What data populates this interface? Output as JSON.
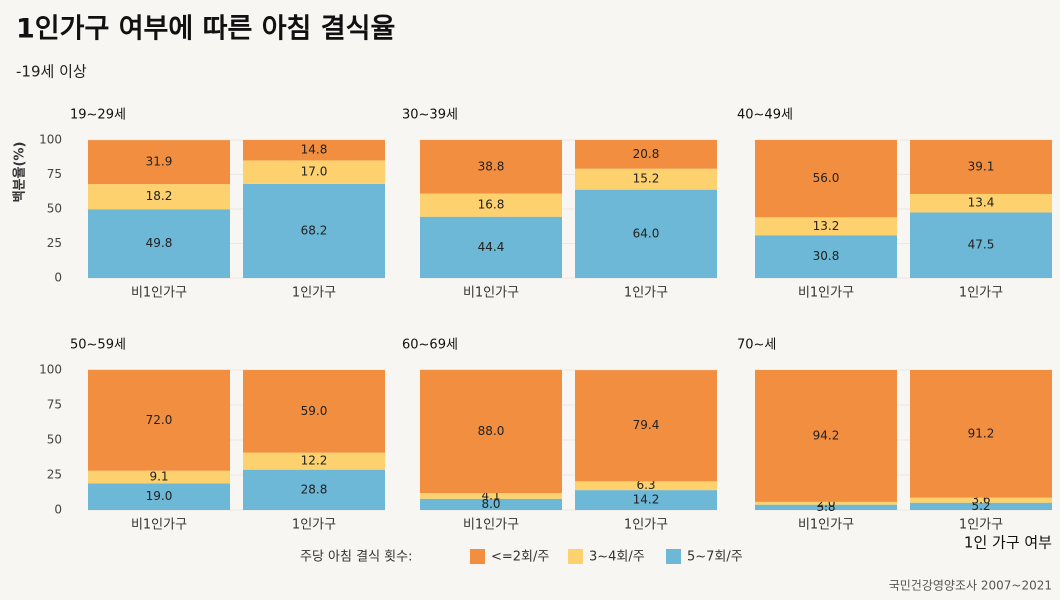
{
  "title": "1인가구 여부에 따른 아침 결식율",
  "subtitle": "-19세 이상",
  "ylabel": "백분율(%)",
  "xlabel": "1인 가구 여부",
  "legend_title": "주당 아침 결식 횟수:",
  "caption": "국민건강영양조사 2007~2021",
  "chart_data": [
    {
      "type": "bar",
      "stacked": true,
      "title": "19~29세",
      "categories": [
        "비1인가구",
        "1인가구"
      ],
      "ylim": [
        0,
        100
      ],
      "yticks": [
        0,
        25,
        50,
        75,
        100
      ],
      "grid": true,
      "series": [
        {
          "name": "<=2회/주",
          "color": "#f28e3f",
          "values": [
            31.9,
            14.8
          ],
          "value_labels": [
            "31.9",
            "14.8"
          ]
        },
        {
          "name": "3~4회/주",
          "color": "#fcd16e",
          "values": [
            18.2,
            17.0
          ],
          "value_labels": [
            "18.2",
            "17.0"
          ]
        },
        {
          "name": "5~7회/주",
          "color": "#6cb8d6",
          "values": [
            49.8,
            68.2
          ],
          "value_labels": [
            "49.8",
            "68.2"
          ]
        }
      ]
    },
    {
      "type": "bar",
      "stacked": true,
      "title": "30~39세",
      "categories": [
        "비1인가구",
        "1인가구"
      ],
      "ylim": [
        0,
        100
      ],
      "yticks": [
        0,
        25,
        50,
        75,
        100
      ],
      "grid": true,
      "series": [
        {
          "name": "<=2회/주",
          "color": "#f28e3f",
          "values": [
            38.8,
            20.8
          ],
          "value_labels": [
            "38.8",
            "20.8"
          ]
        },
        {
          "name": "3~4회/주",
          "color": "#fcd16e",
          "values": [
            16.8,
            15.2
          ],
          "value_labels": [
            "16.8",
            "15.2"
          ]
        },
        {
          "name": "5~7회/주",
          "color": "#6cb8d6",
          "values": [
            44.4,
            64.0
          ],
          "value_labels": [
            "44.4",
            "64.0"
          ]
        }
      ]
    },
    {
      "type": "bar",
      "stacked": true,
      "title": "40~49세",
      "categories": [
        "비1인가구",
        "1인가구"
      ],
      "ylim": [
        0,
        100
      ],
      "yticks": [
        0,
        25,
        50,
        75,
        100
      ],
      "grid": true,
      "series": [
        {
          "name": "<=2회/주",
          "color": "#f28e3f",
          "values": [
            56.0,
            39.1
          ],
          "value_labels": [
            "56.0",
            "39.1"
          ]
        },
        {
          "name": "3~4회/주",
          "color": "#fcd16e",
          "values": [
            13.2,
            13.4
          ],
          "value_labels": [
            "13.2",
            "13.4"
          ]
        },
        {
          "name": "5~7회/주",
          "color": "#6cb8d6",
          "values": [
            30.8,
            47.5
          ],
          "value_labels": [
            "30.8",
            "47.5"
          ]
        }
      ]
    },
    {
      "type": "bar",
      "stacked": true,
      "title": "50~59세",
      "categories": [
        "비1인가구",
        "1인가구"
      ],
      "ylim": [
        0,
        100
      ],
      "yticks": [
        0,
        25,
        50,
        75,
        100
      ],
      "grid": true,
      "series": [
        {
          "name": "<=2회/주",
          "color": "#f28e3f",
          "values": [
            72.0,
            59.0
          ],
          "value_labels": [
            "72.0",
            "59.0"
          ]
        },
        {
          "name": "3~4회/주",
          "color": "#fcd16e",
          "values": [
            9.1,
            12.2
          ],
          "value_labels": [
            "9.1",
            "12.2"
          ]
        },
        {
          "name": "5~7회/주",
          "color": "#6cb8d6",
          "values": [
            19.0,
            28.8
          ],
          "value_labels": [
            "19.0",
            "28.8"
          ]
        }
      ]
    },
    {
      "type": "bar",
      "stacked": true,
      "title": "60~69세",
      "categories": [
        "비1인가구",
        "1인가구"
      ],
      "ylim": [
        0,
        100
      ],
      "yticks": [
        0,
        25,
        50,
        75,
        100
      ],
      "grid": true,
      "series": [
        {
          "name": "<=2회/주",
          "color": "#f28e3f",
          "values": [
            88.0,
            79.4
          ],
          "value_labels": [
            "88.0",
            "79.4"
          ]
        },
        {
          "name": "3~4회/주",
          "color": "#fcd16e",
          "values": [
            4.1,
            6.3
          ],
          "value_labels": [
            "4.1",
            "6.3"
          ]
        },
        {
          "name": "5~7회/주",
          "color": "#6cb8d6",
          "values": [
            8.0,
            14.2
          ],
          "value_labels": [
            "8.0",
            "14.2"
          ]
        }
      ]
    },
    {
      "type": "bar",
      "stacked": true,
      "title": "70~세",
      "categories": [
        "비1인가구",
        "1인가구"
      ],
      "ylim": [
        0,
        100
      ],
      "yticks": [
        0,
        25,
        50,
        75,
        100
      ],
      "grid": true,
      "series": [
        {
          "name": "<=2회/주",
          "color": "#f28e3f",
          "values": [
            94.2,
            91.2
          ],
          "value_labels": [
            "94.2",
            "91.2"
          ]
        },
        {
          "name": "3~4회/주",
          "color": "#fcd16e",
          "values": [
            2.0,
            3.6
          ],
          "value_labels": [
            "2.0",
            "3.6"
          ]
        },
        {
          "name": "5~7회/주",
          "color": "#6cb8d6",
          "values": [
            3.8,
            5.2
          ],
          "value_labels": [
            "3.8",
            "5.2"
          ]
        }
      ]
    }
  ]
}
